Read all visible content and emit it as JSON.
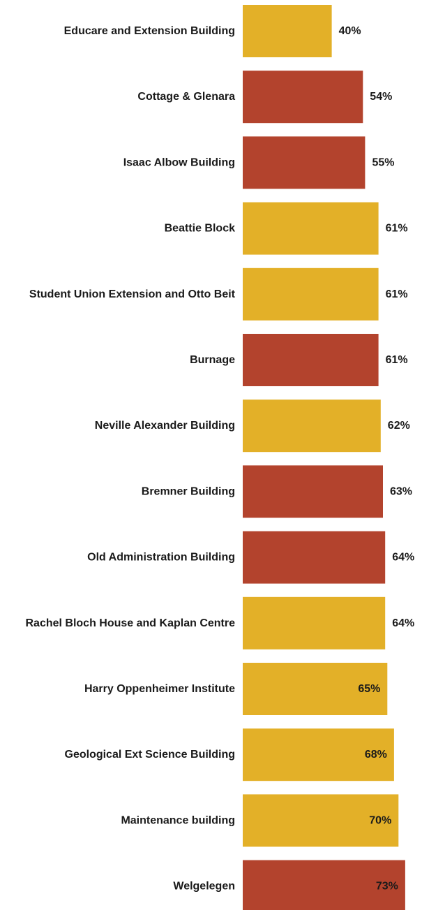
{
  "chart_data": {
    "type": "bar",
    "orientation": "horizontal",
    "categories": [
      "Educare and Extension Building",
      "Cottage & Glenara",
      "Isaac Albow Building",
      "Beattie Block",
      "Student Union Extension and Otto Beit",
      "Burnage",
      "Neville Alexander Building",
      "Bremner Building",
      "Old Administration Building",
      "Rachel Bloch House and Kaplan Centre",
      "Harry Oppenheimer Institute",
      "Geological Ext Science Building",
      "Maintenance building",
      "Welgelegen"
    ],
    "values": [
      40,
      54,
      55,
      61,
      61,
      61,
      62,
      63,
      64,
      64,
      65,
      68,
      70,
      73
    ],
    "value_labels": [
      "40%",
      "54%",
      "55%",
      "61%",
      "61%",
      "61%",
      "62%",
      "63%",
      "64%",
      "64%",
      "65%",
      "68%",
      "70%",
      "73%"
    ],
    "bar_color_group": [
      "gold",
      "red",
      "red",
      "gold",
      "gold",
      "red",
      "gold",
      "red",
      "red",
      "gold",
      "gold",
      "gold",
      "gold",
      "red"
    ],
    "colors": {
      "gold": "#E3B028",
      "red": "#B3432D"
    },
    "value_label_inside_from_index": 10,
    "unit": "%",
    "title": "",
    "xlabel": "",
    "ylabel": "",
    "grid": false,
    "legend": "none"
  }
}
